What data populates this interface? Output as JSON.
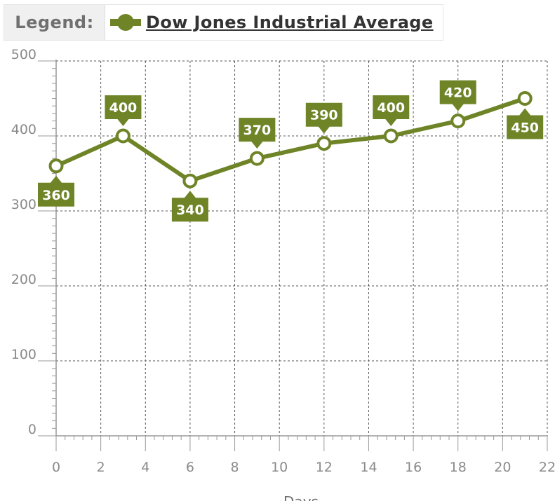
{
  "legend": {
    "label": "Legend:",
    "entries": [
      "Dow Jones Industrial Average"
    ]
  },
  "chart_data": {
    "type": "line",
    "title": "",
    "xlabel": "Days",
    "ylabel": "",
    "xlim": [
      0,
      22
    ],
    "ylim": [
      0,
      500
    ],
    "x_ticks": [
      0,
      2,
      4,
      6,
      8,
      10,
      12,
      14,
      16,
      18,
      20,
      22
    ],
    "y_ticks": [
      0,
      100,
      200,
      300,
      400,
      500
    ],
    "grid": true,
    "legend_position": "top-left",
    "series": [
      {
        "name": "Dow Jones Industrial Average",
        "color": "#6e8427",
        "x": [
          0,
          3,
          6,
          9,
          12,
          15,
          18,
          21
        ],
        "values": [
          360,
          400,
          340,
          370,
          390,
          400,
          420,
          450
        ],
        "labels": [
          "360",
          "400",
          "340",
          "370",
          "390",
          "400",
          "420",
          "450"
        ],
        "label_sides": [
          "below",
          "above",
          "below",
          "above",
          "above",
          "above",
          "above",
          "below"
        ]
      }
    ]
  }
}
